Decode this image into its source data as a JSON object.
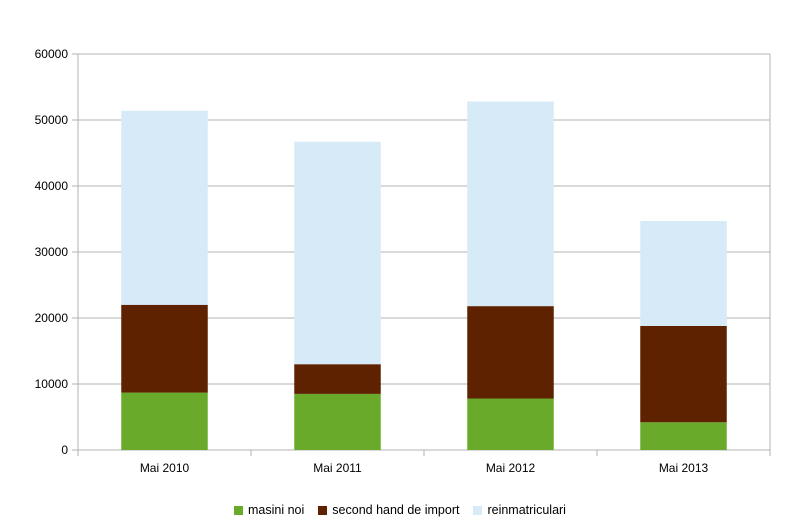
{
  "chart_data": {
    "type": "bar",
    "stacked": true,
    "categories": [
      "Mai 2010",
      "Mai 2011",
      "Mai 2012",
      "Mai 2013"
    ],
    "series": [
      {
        "name": "masini noi",
        "color": "#6aaa2a",
        "values": [
          8700,
          8500,
          7800,
          4200
        ]
      },
      {
        "name": "second hand de import",
        "color": "#5e2200",
        "values": [
          13300,
          4500,
          14000,
          14600
        ]
      },
      {
        "name": "reinmatriculari",
        "color": "#d7eaf7",
        "values": [
          29400,
          33700,
          31000,
          15900
        ]
      }
    ],
    "ylim": [
      0,
      60000
    ],
    "yticks": [
      "0",
      "10000",
      "20000",
      "30000",
      "40000",
      "50000",
      "60000"
    ],
    "grid": true,
    "legend_position": "bottom"
  }
}
